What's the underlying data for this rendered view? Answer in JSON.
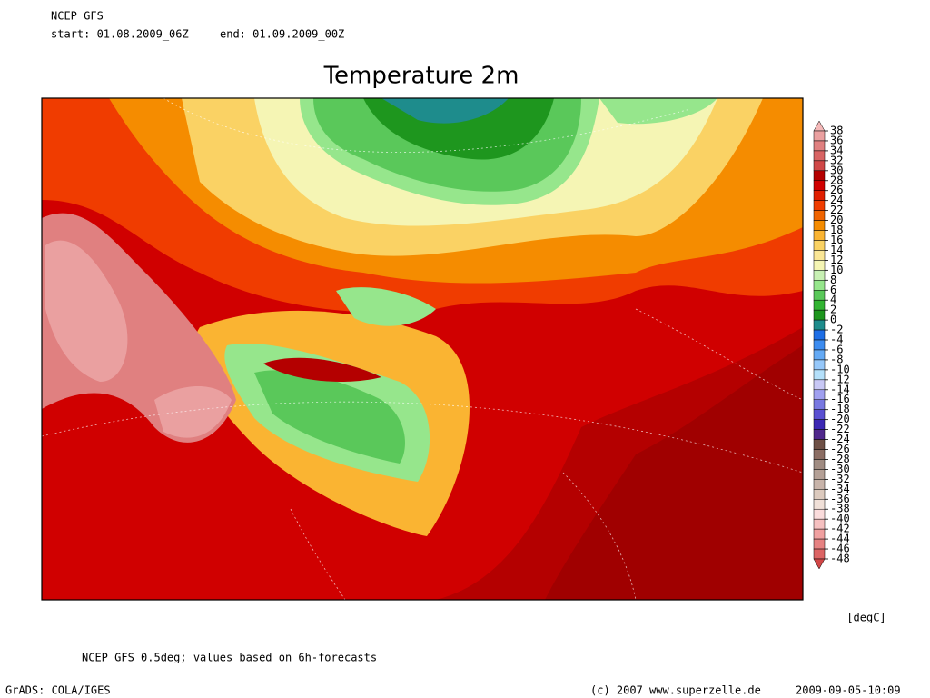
{
  "header": {
    "model": "NCEP GFS",
    "start": "start: 01.08.2009_06Z",
    "end": "end: 01.09.2009_00Z"
  },
  "title": "Temperature 2m",
  "colorbar": {
    "ticks": [
      38,
      36,
      34,
      32,
      30,
      28,
      26,
      24,
      22,
      20,
      18,
      16,
      14,
      12,
      10,
      8,
      6,
      4,
      2,
      0,
      -2,
      -4,
      -6,
      -8,
      -10,
      -12,
      -14,
      -16,
      -18,
      -20,
      -22,
      -24,
      -26,
      -28,
      -30,
      -32,
      -34,
      -36,
      -38,
      -40,
      -42,
      -44,
      -46,
      -48
    ],
    "colors": [
      "#f4b8b8",
      "#eaa0a0",
      "#e08080",
      "#d86464",
      "#d04848",
      "#b40000",
      "#d00000",
      "#e01e00",
      "#f03c00",
      "#f06400",
      "#f58c00",
      "#fab432",
      "#fad264",
      "#fae696",
      "#f5f5b4",
      "#c8f0b4",
      "#96e68c",
      "#5ac85a",
      "#32b432",
      "#1e961e",
      "#1e8c8c",
      "#1e6ee6",
      "#3c8cf0",
      "#64aaf5",
      "#96c8fa",
      "#b4e0fa",
      "#c8c8f5",
      "#a0a0f0",
      "#7878e1",
      "#5a50d2",
      "#3c28b4",
      "#50288c",
      "#6e5046",
      "#8c6e64",
      "#a08c82",
      "#b4a096",
      "#c8b4aa",
      "#dccabe",
      "#f0e0d8",
      "#fadcdc",
      "#f5c0c0",
      "#f0a0a0",
      "#e68282",
      "#dc6464",
      "#d24646"
    ],
    "unit": "[degC]"
  },
  "footer": {
    "note": "NCEP GFS 0.5deg; values based on 6h-forecasts",
    "software": "GrADS: COLA/IGES",
    "copyright": "(c) 2007 www.superzelle.de",
    "timestamp": "2009-09-05-10:09"
  }
}
